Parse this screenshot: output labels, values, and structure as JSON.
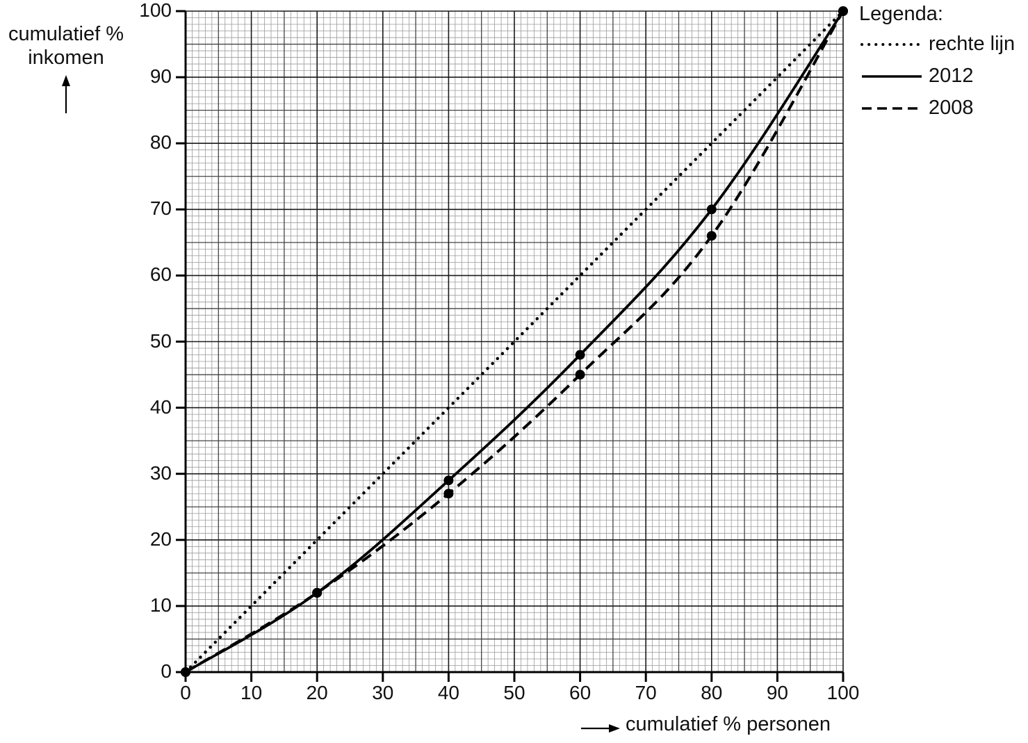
{
  "chart_data": {
    "type": "line",
    "title": "",
    "xlabel": "cumulatief % personen",
    "ylabel": "cumulatief % inkomen",
    "ylabel_lines": [
      "cumulatief %",
      "inkomen"
    ],
    "xlim": [
      0,
      100
    ],
    "ylim": [
      0,
      100
    ],
    "x_ticks": [
      0,
      10,
      20,
      30,
      40,
      50,
      60,
      70,
      80,
      90,
      100
    ],
    "y_ticks": [
      0,
      10,
      20,
      30,
      40,
      50,
      60,
      70,
      80,
      90,
      100
    ],
    "grid": true,
    "grid_minor_step": 1,
    "grid_major_step": 5,
    "legend_position": "top-right",
    "legend_title": "Legenda:",
    "series": [
      {
        "name": "rechte lijn",
        "style": "dotted",
        "x": [
          0,
          100
        ],
        "y": [
          0,
          100
        ]
      },
      {
        "name": "2012",
        "style": "solid",
        "x": [
          0,
          20,
          40,
          60,
          80,
          100
        ],
        "y": [
          0,
          12,
          29,
          48,
          70,
          100
        ]
      },
      {
        "name": "2008",
        "style": "dashed",
        "x": [
          0,
          20,
          40,
          60,
          80,
          100
        ],
        "y": [
          0,
          12,
          27,
          45,
          66,
          100
        ]
      }
    ],
    "line_color": "#000000"
  },
  "labels": {
    "y_title_line1": "cumulatief %",
    "y_title_line2": "inkomen",
    "x_title": "cumulatief % personen",
    "legend_title": "Legenda:",
    "legend_items": [
      "rechte lijn",
      "2012",
      "2008"
    ],
    "y_ticks": [
      "0",
      "10",
      "20",
      "30",
      "40",
      "50",
      "60",
      "70",
      "80",
      "90",
      "100"
    ],
    "x_ticks": [
      "0",
      "10",
      "20",
      "30",
      "40",
      "50",
      "60",
      "70",
      "80",
      "90",
      "100"
    ]
  }
}
